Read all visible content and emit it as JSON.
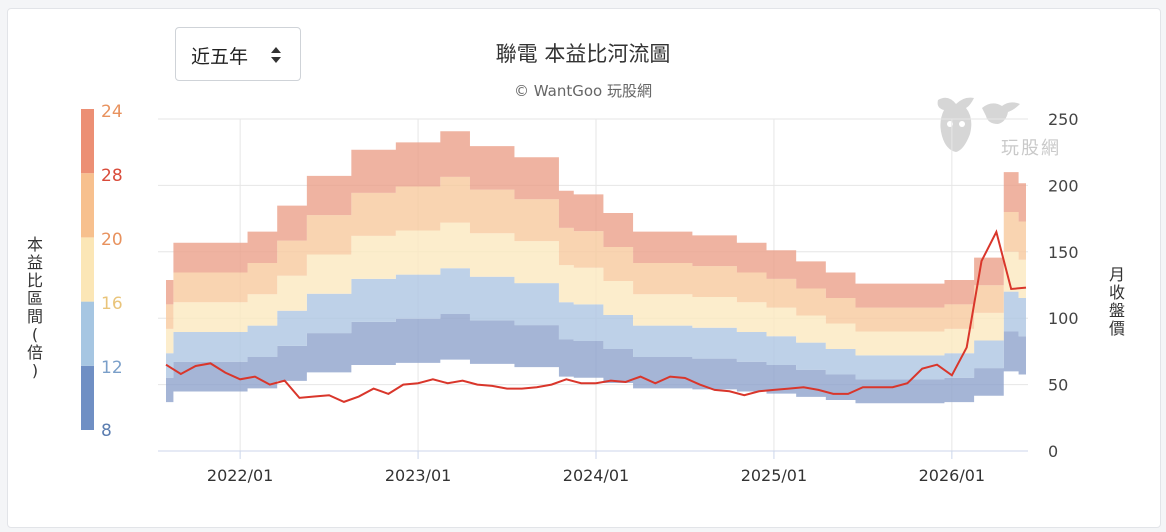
{
  "selector": {
    "label": "近五年",
    "icon": "sort-icon"
  },
  "chart_title": "聯電 本益比河流圖",
  "credit": "© WantGoo 玩股網",
  "watermark": {
    "text": "玩股網",
    "icon": "wantgoo-bull-logo-icon"
  },
  "left_axis_label": "本益比區間(倍)",
  "right_axis_label": "月收盤價",
  "colors": {
    "bands": [
      "#8fa2cc",
      "#aec6e2",
      "#fbe8bf",
      "#f8c99d",
      "#eba08a"
    ],
    "price_line": "#d9362b",
    "scale": [
      "#6f8fc4",
      "#a6c6e2",
      "#fbe6b6",
      "#f7c08e",
      "#ec8f74"
    ],
    "scale_label": [
      "#5b7db0",
      "#7a9fc9",
      "#e9c47a",
      "#e8925e",
      "#d94b3a"
    ]
  },
  "chart_data": {
    "type": "area",
    "x_ticks": [
      "2022/01",
      "2023/01",
      "2024/01",
      "2025/01",
      "2026/01"
    ],
    "y_ticks_right": [
      "0",
      "50",
      "100",
      "150",
      "200",
      "250"
    ],
    "ylim_right": [
      0,
      250
    ],
    "pe_scale_ticks": [
      "8",
      "12",
      "16",
      "20",
      "28",
      "24"
    ],
    "pe_multiples": [
      8,
      12,
      16,
      20,
      24,
      28
    ],
    "legend_position": "left",
    "grid": true,
    "x_months": [
      "2021/08",
      "2021/09",
      "2021/10",
      "2021/11",
      "2021/12",
      "2022/01",
      "2022/02",
      "2022/03",
      "2022/04",
      "2022/05",
      "2022/06",
      "2022/07",
      "2022/08",
      "2022/09",
      "2022/10",
      "2022/11",
      "2022/12",
      "2023/01",
      "2023/02",
      "2023/03",
      "2023/04",
      "2023/05",
      "2023/06",
      "2023/07",
      "2023/08",
      "2023/09",
      "2023/10",
      "2023/11",
      "2023/12",
      "2024/01",
      "2024/02",
      "2024/03",
      "2024/04",
      "2024/05",
      "2024/06",
      "2024/07",
      "2024/08",
      "2024/09",
      "2024/10",
      "2024/11",
      "2024/12",
      "2025/01",
      "2025/02",
      "2025/03",
      "2025/04",
      "2025/05",
      "2025/06",
      "2025/07",
      "2025/08",
      "2025/09",
      "2025/10",
      "2025/11",
      "2025/12",
      "2026/01",
      "2026/02",
      "2026/03",
      "2026/04",
      "2026/05",
      "2026/06"
    ],
    "eps_ttm": [
      4.6,
      5.6,
      5.6,
      5.6,
      5.6,
      5.6,
      5.9,
      5.9,
      6.6,
      6.6,
      7.4,
      7.4,
      7.4,
      8.1,
      8.1,
      8.1,
      8.3,
      8.3,
      8.3,
      8.6,
      8.6,
      8.2,
      8.2,
      8.2,
      7.9,
      7.9,
      7.9,
      7.0,
      6.9,
      6.9,
      6.4,
      6.4,
      5.9,
      5.9,
      5.9,
      5.9,
      5.8,
      5.8,
      5.8,
      5.6,
      5.6,
      5.4,
      5.4,
      5.1,
      5.1,
      4.8,
      4.8,
      4.5,
      4.5,
      4.5,
      4.5,
      4.5,
      4.5,
      4.6,
      4.6,
      5.2,
      5.2,
      7.5,
      7.2
    ],
    "price": [
      65,
      58,
      64,
      66,
      59,
      54,
      56,
      50,
      53,
      40,
      41,
      42,
      37,
      41,
      47,
      43,
      50,
      51,
      54,
      51,
      53,
      50,
      49,
      47,
      47,
      48,
      50,
      54,
      51,
      51,
      53,
      52,
      56,
      51,
      56,
      55,
      50,
      46,
      45,
      42,
      45,
      46,
      47,
      48,
      46,
      43,
      43,
      48,
      48,
      48,
      51,
      62,
      65,
      57,
      78,
      143,
      165,
      122,
      123
    ]
  }
}
